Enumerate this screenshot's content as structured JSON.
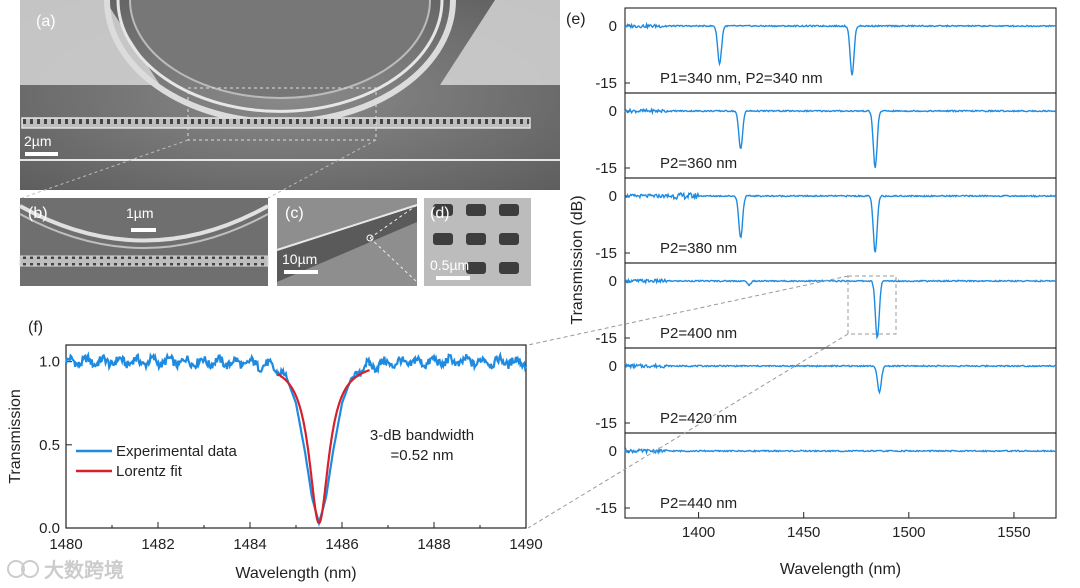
{
  "figure": {
    "panel_a": {
      "label": "(a)",
      "scalebar": "2µm"
    },
    "panel_b": {
      "label": "(b)",
      "scalebar": "1µm"
    },
    "panel_c": {
      "label": "(c)",
      "scalebar": "10µm"
    },
    "panel_d": {
      "label": "(d)",
      "scalebar": "0.5µm"
    },
    "panel_e": {
      "label": "(e)"
    },
    "panel_f": {
      "label": "(f)"
    },
    "watermark": "大数跨境"
  },
  "chart_data": [
    {
      "id": "f",
      "type": "line",
      "xlabel": "Wavelength (nm)",
      "ylabel": "Transmission",
      "xlim": [
        1480,
        1490
      ],
      "ylim": [
        0,
        1.1
      ],
      "xticks": [
        "1480",
        "1482",
        "1484",
        "1486",
        "1488",
        "1490"
      ],
      "yticks": [
        "0.0",
        "0.5",
        "1.0"
      ],
      "series": [
        {
          "name": "Experimental data",
          "color": "#1f8be0",
          "x": [
            1480.0,
            1481.0,
            1482.0,
            1483.0,
            1484.0,
            1484.5,
            1484.8,
            1485.0,
            1485.2,
            1485.35,
            1485.5,
            1485.65,
            1485.8,
            1486.0,
            1486.2,
            1486.5,
            1487.0,
            1488.0,
            1489.0,
            1490.0
          ],
          "y": [
            1.0,
            1.0,
            1.0,
            1.0,
            0.99,
            0.97,
            0.9,
            0.75,
            0.45,
            0.18,
            0.03,
            0.18,
            0.45,
            0.75,
            0.9,
            0.97,
            0.99,
            1.0,
            1.0,
            1.0
          ]
        },
        {
          "name": "Lorentz fit",
          "color": "#d6202a",
          "center": 1485.5,
          "fwhm": 0.52,
          "xrange": [
            1484.6,
            1486.6
          ]
        }
      ],
      "annotation": {
        "line1": "3-dB bandwidth",
        "line2": "=0.52 nm"
      }
    },
    {
      "id": "e",
      "type": "line",
      "xlabel": "Wavelength (nm)",
      "ylabel": "Transmission (dB)",
      "xlim": [
        1365,
        1570
      ],
      "xticks": [
        "1400",
        "1450",
        "1500",
        "1550"
      ],
      "ytick_labels": [
        "0",
        "-15"
      ],
      "subplots": [
        {
          "label": "P1=340 nm, P2=340 nm",
          "dips": [
            {
              "x": 1410,
              "depth": -10
            },
            {
              "x": 1473,
              "depth": -13
            }
          ]
        },
        {
          "label": "P2=360 nm",
          "dips": [
            {
              "x": 1420,
              "depth": -10
            },
            {
              "x": 1484,
              "depth": -15
            }
          ]
        },
        {
          "label": "P2=380 nm",
          "dips": [
            {
              "x": 1420,
              "depth": -11
            },
            {
              "x": 1484,
              "depth": -15
            }
          ]
        },
        {
          "label": "P2=400 nm",
          "dips": [
            {
              "x": 1424,
              "depth": -1
            },
            {
              "x": 1485,
              "depth": -15
            }
          ]
        },
        {
          "label": "P2=420 nm",
          "dips": [
            {
              "x": 1486,
              "depth": -7
            }
          ]
        },
        {
          "label": "P2=440 nm",
          "dips": []
        }
      ]
    }
  ]
}
